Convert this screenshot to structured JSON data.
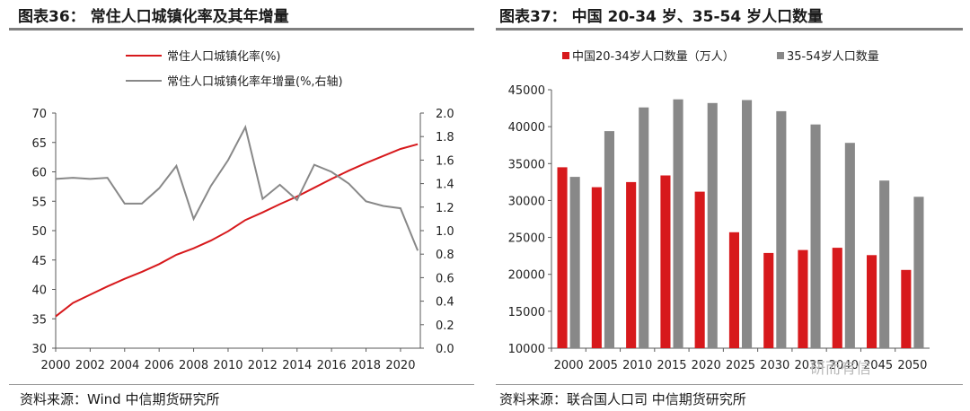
{
  "left": {
    "title": "图表36： 常住人口城镇化率及其年增量",
    "source": "资料来源：Wind 中信期货研究所"
  },
  "right": {
    "title": "图表37： 中国 20-34 岁、35-54 岁人口数量",
    "source": "资料来源：联合国人口司 中信期货研究所"
  },
  "watermark": "研而有信",
  "colors": {
    "red": "#d7191c",
    "gray": "#888888",
    "axis": "#595959"
  },
  "chart_data": [
    {
      "type": "line",
      "title": "常住人口城镇化率及其年增量",
      "x": [
        2000,
        2001,
        2002,
        2003,
        2004,
        2005,
        2006,
        2007,
        2008,
        2009,
        2010,
        2011,
        2012,
        2013,
        2014,
        2015,
        2016,
        2017,
        2018,
        2019,
        2020,
        2021
      ],
      "x_ticks": [
        "2000",
        "2002",
        "2004",
        "2006",
        "2008",
        "2010",
        "2012",
        "2014",
        "2016",
        "2018",
        "2020"
      ],
      "y_ticks_left": [
        "30",
        "35",
        "40",
        "45",
        "50",
        "55",
        "60",
        "65",
        "70"
      ],
      "y_ticks_right": [
        "0.0",
        "0.2",
        "0.4",
        "0.6",
        "0.8",
        "1.0",
        "1.2",
        "1.4",
        "1.6",
        "1.8",
        "2.0"
      ],
      "ylim_left": [
        30,
        70
      ],
      "ylim_right": [
        0,
        2.0
      ],
      "series": [
        {
          "name": "常住人口城镇化率(%)",
          "axis": "left",
          "color": "#d7191c",
          "values": [
            35.4,
            37.7,
            39.1,
            40.5,
            41.8,
            43.0,
            44.3,
            45.9,
            47.0,
            48.3,
            49.9,
            51.8,
            53.1,
            54.5,
            55.8,
            57.3,
            58.8,
            60.2,
            61.5,
            62.7,
            63.9,
            64.7
          ]
        },
        {
          "name": "常住人口城镇化率年增量(%,右轴)",
          "axis": "right",
          "color": "#888888",
          "values": [
            1.44,
            1.45,
            1.44,
            1.45,
            1.23,
            1.23,
            1.36,
            1.55,
            1.1,
            1.38,
            1.6,
            1.88,
            1.27,
            1.39,
            1.26,
            1.56,
            1.5,
            1.4,
            1.25,
            1.21,
            1.19,
            0.83
          ]
        }
      ],
      "legend_position": "top-right"
    },
    {
      "type": "bar",
      "title": "中国 20-34 岁、35-54 岁人口数量",
      "categories": [
        "2000",
        "2005",
        "2010",
        "2015",
        "2020",
        "2025",
        "2030",
        "2035",
        "2040",
        "2045",
        "2050"
      ],
      "y_ticks": [
        "10000",
        "15000",
        "20000",
        "25000",
        "30000",
        "35000",
        "40000",
        "45000"
      ],
      "ylim": [
        10000,
        45000
      ],
      "series": [
        {
          "name": "中国20-34岁人口数量（万人）",
          "color": "#d7191c",
          "values": [
            34500,
            31800,
            32500,
            33400,
            31200,
            25700,
            22900,
            23300,
            23600,
            22600,
            20600
          ]
        },
        {
          "name": "35-54岁人口数量",
          "color": "#888888",
          "values": [
            33200,
            39400,
            42600,
            43700,
            43200,
            43600,
            42100,
            40300,
            37800,
            32700,
            30500
          ]
        }
      ],
      "legend_position": "top"
    }
  ]
}
